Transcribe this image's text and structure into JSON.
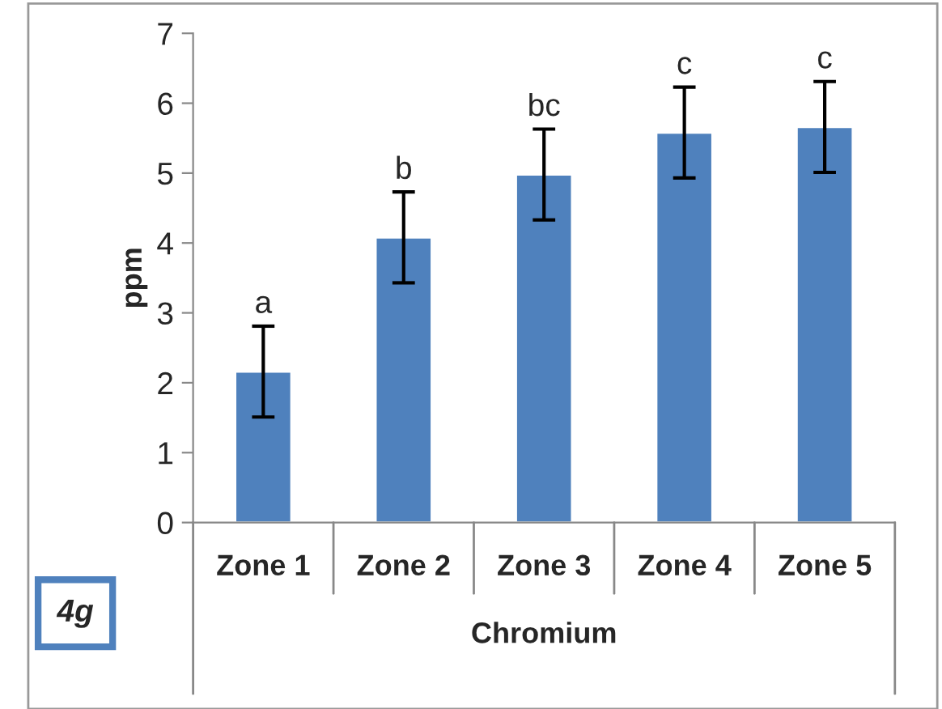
{
  "chart_data": {
    "type": "bar",
    "xlabel": "Chromium",
    "ylabel": "ppm",
    "categories": [
      "Zone 1",
      "Zone 2",
      "Zone 3",
      "Zone 4",
      "Zone 5"
    ],
    "values": [
      2.16,
      4.08,
      4.98,
      5.58,
      5.66
    ],
    "errors": [
      0.65,
      0.65,
      0.65,
      0.65,
      0.65
    ],
    "color": "#4f81bd",
    "ylim": [
      0,
      7
    ],
    "yticks": [
      0,
      1,
      2,
      3,
      4,
      5,
      6,
      7
    ],
    "grid": false,
    "annotations": [
      {
        "text": "a",
        "x": "Zone 1",
        "y": 2.81
      },
      {
        "text": "b",
        "x": "Zone 2",
        "y": 4.73
      },
      {
        "text": "bc",
        "x": "Zone 3",
        "y": 5.63
      },
      {
        "text": "c",
        "x": "Zone 4",
        "y": 6.23
      },
      {
        "text": "c",
        "x": "Zone 5",
        "y": 6.31
      },
      "4g"
    ]
  }
}
